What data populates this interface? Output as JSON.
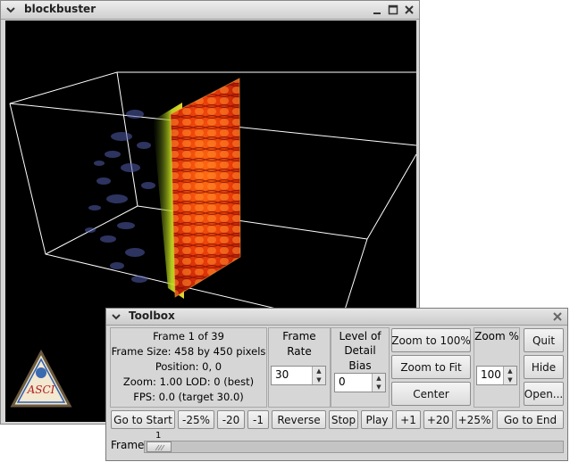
{
  "main_window": {
    "title": "blockbuster",
    "logo": {
      "text": "ASCI",
      "icon": "asci-logo"
    }
  },
  "toolbox": {
    "title": "Toolbox",
    "info": {
      "frame": "Frame 1 of 39",
      "frame_size": "Frame Size: 458 by 450 pixels",
      "position": "Position: 0, 0",
      "zoom_lod": "Zoom:  1.00  LOD: 0 (best)",
      "fps": "FPS:   0.0 (target 30.0)"
    },
    "frame_rate": {
      "label": "Frame Rate",
      "value": "30"
    },
    "lod_bias": {
      "label_line1": "Level of",
      "label_line2": "Detail Bias",
      "value": "0"
    },
    "zoom_buttons": {
      "zoom100": "Zoom to 100%",
      "zoom_fit": "Zoom to Fit",
      "center": "Center"
    },
    "zoom_pct": {
      "label": "Zoom %",
      "value": "100"
    },
    "actions": {
      "quit": "Quit",
      "hide": "Hide",
      "open": "Open..."
    },
    "transport": {
      "go_start": "Go to Start",
      "m25pct": "-25%",
      "m20": "-20",
      "m1": "-1",
      "reverse": "Reverse",
      "stop": "Stop",
      "play": "Play",
      "p1": "+1",
      "p20": "+20",
      "p25pct": "+25%",
      "go_end": "Go to End"
    },
    "frame_slider": {
      "label": "Frame",
      "value": "1"
    }
  }
}
